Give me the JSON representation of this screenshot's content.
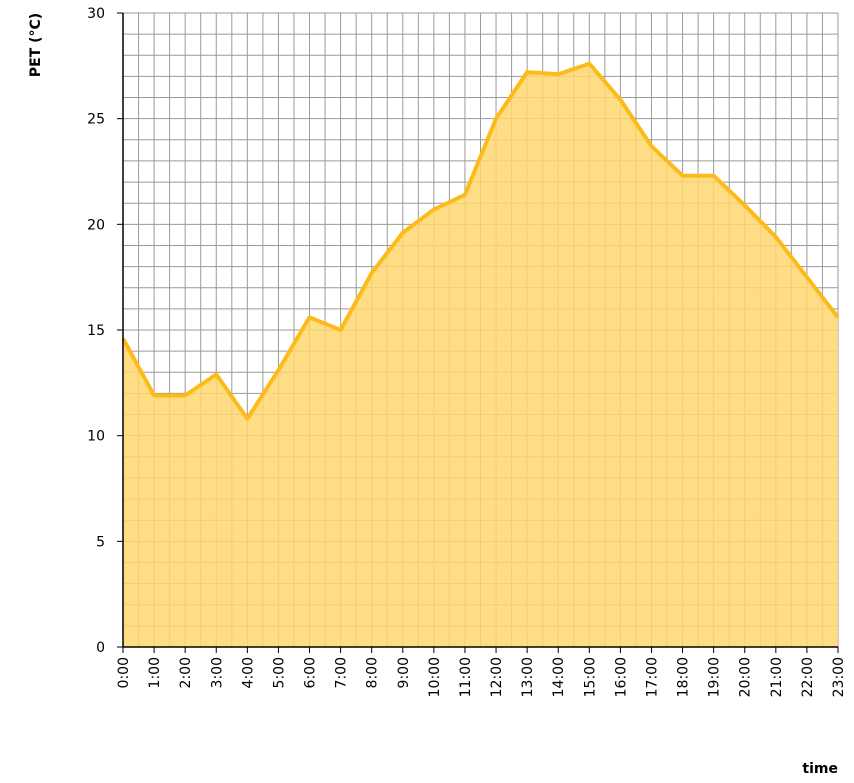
{
  "chart_data": {
    "type": "area",
    "ylabel": "PET (°C)",
    "xlabel": "time",
    "categories": [
      "0:00",
      "1:00",
      "2:00",
      "3:00",
      "4:00",
      "5:00",
      "6:00",
      "7:00",
      "8:00",
      "9:00",
      "10:00",
      "11:00",
      "12:00",
      "13:00",
      "14:00",
      "15:00",
      "16:00",
      "17:00",
      "18:00",
      "19:00",
      "20:00",
      "21:00",
      "22:00",
      "23:00"
    ],
    "values": [
      14.6,
      11.9,
      11.9,
      12.9,
      10.8,
      13.1,
      15.6,
      15.0,
      17.7,
      19.6,
      20.7,
      21.4,
      25.0,
      27.2,
      27.1,
      27.6,
      25.9,
      23.7,
      22.3,
      22.3,
      20.9,
      19.4,
      17.5,
      15.6
    ],
    "color": "#fdbb1a",
    "fill_color": "#ffd770",
    "ylim": [
      0,
      30
    ],
    "yticks": [
      0,
      5,
      10,
      15,
      20,
      25,
      30
    ],
    "grid": true,
    "minor_grid": true
  }
}
